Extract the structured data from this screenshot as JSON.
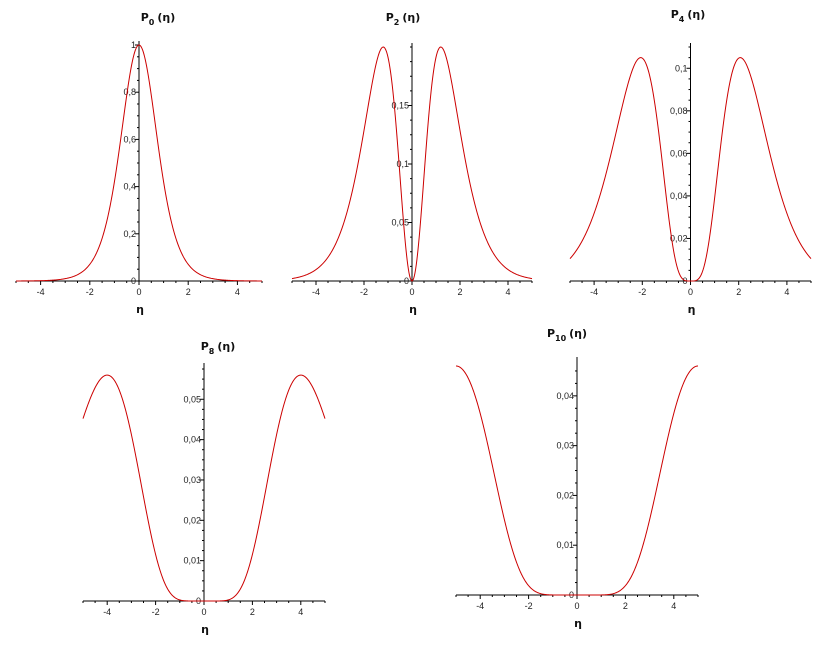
{
  "chart_data": [
    {
      "type": "line",
      "title_main": "P",
      "title_sub": "0",
      "title_arg": "(η)",
      "xlabel": "η",
      "xlim": [
        -5,
        5
      ],
      "ylim": [
        0,
        1
      ],
      "x_ticks": [
        -4,
        -2,
        0,
        2,
        4
      ],
      "y_ticks": [
        0.2,
        0.4,
        0.6,
        0.8,
        1
      ],
      "x_tick_labels": [
        "-4",
        "-2",
        "0",
        "2",
        "4"
      ],
      "y_tick_labels": [
        "0,2",
        "0,4",
        "0,6",
        "0,8",
        "1"
      ],
      "n": 0,
      "peak_y": 1.0,
      "series_color": "#cc0000",
      "x": [
        -5,
        -4,
        -3,
        -2,
        -1.5,
        -1,
        -0.5,
        0,
        0.5,
        1,
        1.5,
        2,
        3,
        4,
        5
      ],
      "y": [
        0.02,
        0.05,
        0.1,
        0.26,
        0.42,
        0.64,
        0.89,
        1.0,
        0.89,
        0.64,
        0.42,
        0.26,
        0.1,
        0.05,
        0.02
      ]
    },
    {
      "type": "line",
      "title_main": "P",
      "title_sub": "2",
      "title_arg": "(η)",
      "xlabel": "η",
      "xlim": [
        -5,
        5
      ],
      "ylim": [
        0,
        0.2
      ],
      "x_ticks": [
        -4,
        -2,
        0,
        2,
        4
      ],
      "y_ticks": [
        0.05,
        0.1,
        0.15
      ],
      "x_tick_labels": [
        "-4",
        "-2",
        "0",
        "2",
        "4"
      ],
      "y_tick_labels": [
        "0,05",
        "0,1",
        "0,15"
      ],
      "n": 2,
      "peak_y": 0.2,
      "series_color": "#cc0000",
      "x": [
        -5,
        -4,
        -3,
        -2,
        -1.2,
        -0.5,
        0,
        0.5,
        1.2,
        2,
        3,
        4,
        5
      ],
      "y": [
        0.01,
        0.03,
        0.08,
        0.15,
        0.2,
        0.09,
        0,
        0.09,
        0.2,
        0.15,
        0.08,
        0.03,
        0.01
      ]
    },
    {
      "type": "line",
      "title_main": "P",
      "title_sub": "4",
      "title_arg": "(η)",
      "xlabel": "η",
      "xlim": [
        -5,
        5
      ],
      "ylim": [
        0,
        0.11
      ],
      "x_ticks": [
        -4,
        -2,
        0,
        2,
        4
      ],
      "y_ticks": [
        0.02,
        0.04,
        0.06,
        0.08,
        0.1
      ],
      "x_tick_labels": [
        "-4",
        "-2",
        "0",
        "2",
        "4"
      ],
      "y_tick_labels": [
        "0,02",
        "0,04",
        "0,06",
        "0,08",
        "0,1"
      ],
      "n": 4,
      "peak_y": 0.105,
      "series_color": "#cc0000",
      "x": [
        -5,
        -4,
        -3,
        -2,
        -1.4,
        -0.7,
        0,
        0.7,
        1.4,
        2,
        3,
        4,
        5
      ],
      "y": [
        0.008,
        0.02,
        0.05,
        0.09,
        0.105,
        0.045,
        0,
        0.045,
        0.105,
        0.09,
        0.05,
        0.02,
        0.008
      ]
    },
    {
      "type": "line",
      "title_main": "P",
      "title_sub": "8",
      "title_arg": "(η)",
      "xlabel": "η",
      "xlim": [
        -5,
        5
      ],
      "ylim": [
        0,
        0.058
      ],
      "x_ticks": [
        -4,
        -2,
        0,
        2,
        4
      ],
      "y_ticks": [
        0.01,
        0.02,
        0.03,
        0.04,
        0.05
      ],
      "x_tick_labels": [
        "-4",
        "-2",
        "0",
        "2",
        "4"
      ],
      "y_tick_labels": [
        "0,01",
        "0,02",
        "0,03",
        "0,04",
        "0,05"
      ],
      "n": 8,
      "peak_y": 0.056,
      "series_color": "#cc0000",
      "x": [
        -5,
        -4,
        -3,
        -1.75,
        -1,
        -0.5,
        0,
        0.5,
        1,
        1.75,
        3,
        4,
        5
      ],
      "y": [
        0.005,
        0.015,
        0.035,
        0.056,
        0.02,
        0.001,
        0,
        0.001,
        0.02,
        0.056,
        0.035,
        0.015,
        0.005
      ]
    },
    {
      "type": "line",
      "title_main": "P",
      "title_sub": "10",
      "title_arg": "(η)",
      "xlabel": "η",
      "xlim": [
        -5,
        5
      ],
      "ylim": [
        0,
        0.047
      ],
      "x_ticks": [
        -4,
        -2,
        0,
        2,
        4
      ],
      "y_ticks": [
        0.01,
        0.02,
        0.03,
        0.04
      ],
      "x_tick_labels": [
        "-4",
        "-2",
        "0",
        "2",
        "4"
      ],
      "y_tick_labels": [
        "0,01",
        "0,02",
        "0,03",
        "0,04"
      ],
      "n": 10,
      "peak_y": 0.046,
      "series_color": "#cc0000",
      "x": [
        -5,
        -4,
        -3,
        -1.9,
        -1,
        -0.5,
        0,
        0.5,
        1,
        1.9,
        3,
        4,
        5
      ],
      "y": [
        0.004,
        0.013,
        0.03,
        0.046,
        0.013,
        0.0005,
        0,
        0.0005,
        0.013,
        0.046,
        0.03,
        0.013,
        0.004
      ]
    }
  ]
}
